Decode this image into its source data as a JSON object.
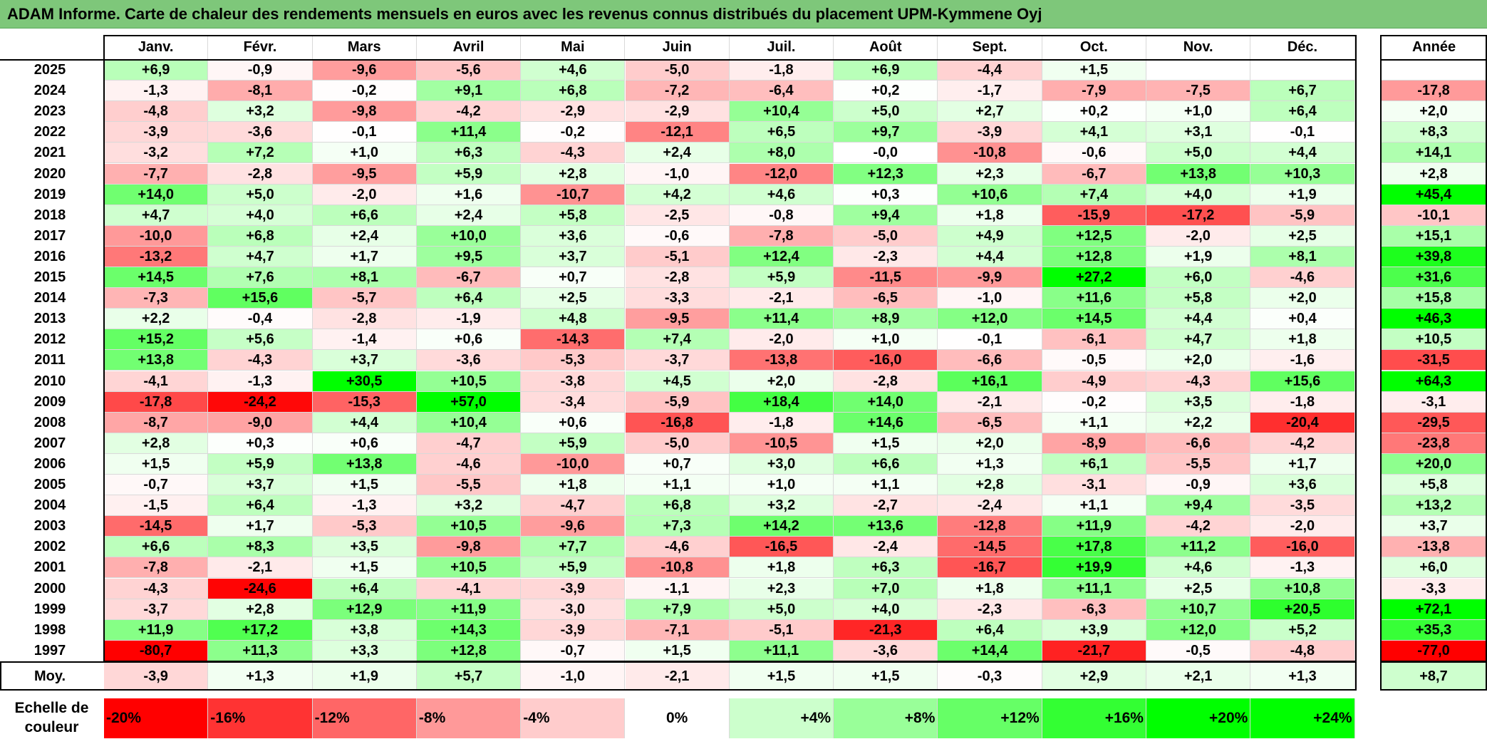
{
  "title": "ADAM Informe. Carte de chaleur des rendements mensuels en euros avec les revenus connus distribués du placement UPM-Kymmene Oyj",
  "chart_data": {
    "type": "heatmap",
    "months": [
      "Janv.",
      "Févr.",
      "Mars",
      "Avril",
      "Mai",
      "Juin",
      "Juil.",
      "Août",
      "Sept.",
      "Oct.",
      "Nov.",
      "Déc."
    ],
    "year_header": "Année",
    "rows": [
      {
        "year": "2025",
        "values": [
          "+6,9",
          "-0,9",
          "-9,6",
          "-5,6",
          "+4,6",
          "-5,0",
          "-1,8",
          "+6,9",
          "-4,4",
          "+1,5",
          "",
          ""
        ],
        "annual": ""
      },
      {
        "year": "2024",
        "values": [
          "-1,3",
          "-8,1",
          "-0,2",
          "+9,1",
          "+6,8",
          "-7,2",
          "-6,4",
          "+0,2",
          "-1,7",
          "-7,9",
          "-7,5",
          "+6,7"
        ],
        "annual": "-17,8"
      },
      {
        "year": "2023",
        "values": [
          "-4,8",
          "+3,2",
          "-9,8",
          "-4,2",
          "-2,9",
          "-2,9",
          "+10,4",
          "+5,0",
          "+2,7",
          "+0,2",
          "+1,0",
          "+6,4"
        ],
        "annual": "+2,0"
      },
      {
        "year": "2022",
        "values": [
          "-3,9",
          "-3,6",
          "-0,1",
          "+11,4",
          "-0,2",
          "-12,1",
          "+6,5",
          "+9,7",
          "-3,9",
          "+4,1",
          "+3,1",
          "-0,1"
        ],
        "annual": "+8,3"
      },
      {
        "year": "2021",
        "values": [
          "-3,2",
          "+7,2",
          "+1,0",
          "+6,3",
          "-4,3",
          "+2,4",
          "+8,0",
          "-0,0",
          "-10,8",
          "-0,6",
          "+5,0",
          "+4,4"
        ],
        "annual": "+14,1"
      },
      {
        "year": "2020",
        "values": [
          "-7,7",
          "-2,8",
          "-9,5",
          "+5,9",
          "+2,8",
          "-1,0",
          "-12,0",
          "+12,3",
          "+2,3",
          "-6,7",
          "+13,8",
          "+10,3"
        ],
        "annual": "+2,8"
      },
      {
        "year": "2019",
        "values": [
          "+14,0",
          "+5,0",
          "-2,0",
          "+1,6",
          "-10,7",
          "+4,2",
          "+4,6",
          "+0,3",
          "+10,6",
          "+7,4",
          "+4,0",
          "+1,9"
        ],
        "annual": "+45,4"
      },
      {
        "year": "2018",
        "values": [
          "+4,7",
          "+4,0",
          "+6,6",
          "+2,4",
          "+5,8",
          "-2,5",
          "-0,8",
          "+9,4",
          "+1,8",
          "-15,9",
          "-17,2",
          "-5,9"
        ],
        "annual": "-10,1"
      },
      {
        "year": "2017",
        "values": [
          "-10,0",
          "+6,8",
          "+2,4",
          "+10,0",
          "+3,6",
          "-0,6",
          "-7,8",
          "-5,0",
          "+4,9",
          "+12,5",
          "-2,0",
          "+2,5"
        ],
        "annual": "+15,1"
      },
      {
        "year": "2016",
        "values": [
          "-13,2",
          "+4,7",
          "+1,7",
          "+9,5",
          "+3,7",
          "-5,1",
          "+12,4",
          "-2,3",
          "+4,4",
          "+12,8",
          "+1,9",
          "+8,1"
        ],
        "annual": "+39,8"
      },
      {
        "year": "2015",
        "values": [
          "+14,5",
          "+7,6",
          "+8,1",
          "-6,7",
          "+0,7",
          "-2,8",
          "+5,9",
          "-11,5",
          "-9,9",
          "+27,2",
          "+6,0",
          "-4,6"
        ],
        "annual": "+31,6"
      },
      {
        "year": "2014",
        "values": [
          "-7,3",
          "+15,6",
          "-5,7",
          "+6,4",
          "+2,5",
          "-3,3",
          "-2,1",
          "-6,5",
          "-1,0",
          "+11,6",
          "+5,8",
          "+2,0"
        ],
        "annual": "+15,8"
      },
      {
        "year": "2013",
        "values": [
          "+2,2",
          "-0,4",
          "-2,8",
          "-1,9",
          "+4,8",
          "-9,5",
          "+11,4",
          "+8,9",
          "+12,0",
          "+14,5",
          "+4,4",
          "+0,4"
        ],
        "annual": "+46,3"
      },
      {
        "year": "2012",
        "values": [
          "+15,2",
          "+5,6",
          "-1,4",
          "+0,6",
          "-14,3",
          "+7,4",
          "-2,0",
          "+1,0",
          "-0,1",
          "-6,1",
          "+4,7",
          "+1,8"
        ],
        "annual": "+10,5"
      },
      {
        "year": "2011",
        "values": [
          "+13,8",
          "-4,3",
          "+3,7",
          "-3,6",
          "-5,3",
          "-3,7",
          "-13,8",
          "-16,0",
          "-6,6",
          "-0,5",
          "+2,0",
          "-1,6"
        ],
        "annual": "-31,5"
      },
      {
        "year": "2010",
        "values": [
          "-4,1",
          "-1,3",
          "+30,5",
          "+10,5",
          "-3,8",
          "+4,5",
          "+2,0",
          "-2,8",
          "+16,1",
          "-4,9",
          "-4,3",
          "+15,6"
        ],
        "annual": "+64,3"
      },
      {
        "year": "2009",
        "values": [
          "-17,8",
          "-24,2",
          "-15,3",
          "+57,0",
          "-3,4",
          "-5,9",
          "+18,4",
          "+14,0",
          "-2,1",
          "-0,2",
          "+3,5",
          "-1,8"
        ],
        "annual": "-3,1"
      },
      {
        "year": "2008",
        "values": [
          "-8,7",
          "-9,0",
          "+4,4",
          "+10,4",
          "+0,6",
          "-16,8",
          "-1,8",
          "+14,6",
          "-6,5",
          "+1,1",
          "+2,2",
          "-20,4"
        ],
        "annual": "-29,5"
      },
      {
        "year": "2007",
        "values": [
          "+2,8",
          "+0,3",
          "+0,6",
          "-4,7",
          "+5,9",
          "-5,0",
          "-10,5",
          "+1,5",
          "+2,0",
          "-8,9",
          "-6,6",
          "-4,2"
        ],
        "annual": "-23,8"
      },
      {
        "year": "2006",
        "values": [
          "+1,5",
          "+5,9",
          "+13,8",
          "-4,6",
          "-10,0",
          "+0,7",
          "+3,0",
          "+6,6",
          "+1,3",
          "+6,1",
          "-5,5",
          "+1,7"
        ],
        "annual": "+20,0"
      },
      {
        "year": "2005",
        "values": [
          "-0,7",
          "+3,7",
          "+1,5",
          "-5,5",
          "+1,8",
          "+1,1",
          "+1,0",
          "+1,1",
          "+2,8",
          "-3,1",
          "-0,9",
          "+3,6"
        ],
        "annual": "+5,8"
      },
      {
        "year": "2004",
        "values": [
          "-1,5",
          "+6,4",
          "-1,3",
          "+3,2",
          "-4,7",
          "+6,8",
          "+3,2",
          "-2,7",
          "-2,4",
          "+1,1",
          "+9,4",
          "-3,5"
        ],
        "annual": "+13,2"
      },
      {
        "year": "2003",
        "values": [
          "-14,5",
          "+1,7",
          "-5,3",
          "+10,5",
          "-9,6",
          "+7,3",
          "+14,2",
          "+13,6",
          "-12,8",
          "+11,9",
          "-4,2",
          "-2,0"
        ],
        "annual": "+3,7"
      },
      {
        "year": "2002",
        "values": [
          "+6,6",
          "+8,3",
          "+3,5",
          "-9,8",
          "+7,7",
          "-4,6",
          "-16,5",
          "-2,4",
          "-14,5",
          "+17,8",
          "+11,2",
          "-16,0"
        ],
        "annual": "-13,8"
      },
      {
        "year": "2001",
        "values": [
          "-7,8",
          "-2,1",
          "+1,5",
          "+10,5",
          "+5,9",
          "-10,8",
          "+1,8",
          "+6,3",
          "-16,7",
          "+19,9",
          "+4,6",
          "-1,3"
        ],
        "annual": "+6,0"
      },
      {
        "year": "2000",
        "values": [
          "-4,3",
          "-24,6",
          "+6,4",
          "-4,1",
          "-3,9",
          "-1,1",
          "+2,3",
          "+7,0",
          "+1,8",
          "+11,1",
          "+2,5",
          "+10,8"
        ],
        "annual": "-3,3"
      },
      {
        "year": "1999",
        "values": [
          "-3,7",
          "+2,8",
          "+12,9",
          "+11,9",
          "-3,0",
          "+7,9",
          "+5,0",
          "+4,0",
          "-2,3",
          "-6,3",
          "+10,7",
          "+20,5"
        ],
        "annual": "+72,1"
      },
      {
        "year": "1998",
        "values": [
          "+11,9",
          "+17,2",
          "+3,8",
          "+14,3",
          "-3,9",
          "-7,1",
          "-5,1",
          "-21,3",
          "+6,4",
          "+3,9",
          "+12,0",
          "+5,2"
        ],
        "annual": "+35,3"
      },
      {
        "year": "1997",
        "values": [
          "-80,7",
          "+11,3",
          "+3,3",
          "+12,8",
          "-0,7",
          "+1,5",
          "+11,1",
          "-3,6",
          "+14,4",
          "-21,7",
          "-0,5",
          "-4,8"
        ],
        "annual": "-77,0"
      }
    ],
    "average": {
      "label": "Moy.",
      "values": [
        "-3,9",
        "+1,3",
        "+1,9",
        "+5,7",
        "-1,0",
        "-2,1",
        "+1,5",
        "+1,5",
        "-0,3",
        "+2,9",
        "+2,1",
        "+1,3"
      ],
      "annual": "+8,7"
    },
    "scale": {
      "label": "Echelle de couleur",
      "stops": [
        "-20%",
        "-16%",
        "-12%",
        "-8%",
        "-4%",
        "0%",
        "+4%",
        "+8%",
        "+12%",
        "+16%",
        "+20%",
        "+24%"
      ]
    },
    "colors": {
      "negative": "#ff0000",
      "zero": "#ffffff",
      "positive": "#00ff00",
      "title_bar": "#7ec77a"
    }
  }
}
